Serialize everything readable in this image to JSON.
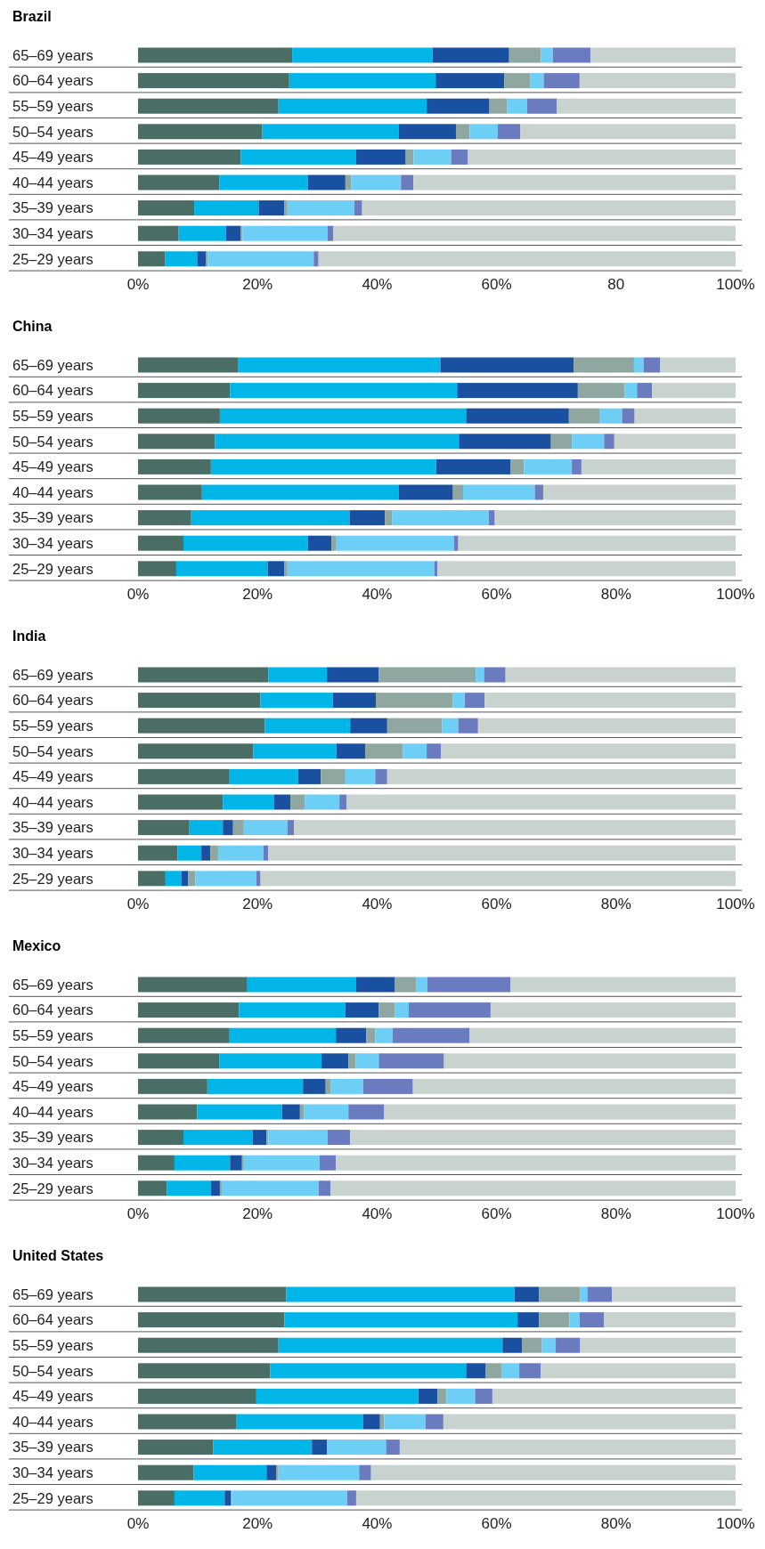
{
  "chart_data": [
    {
      "type": "bar",
      "orientation": "horizontal",
      "stacked": true,
      "title": "Brazil",
      "grid": "y",
      "categories": [
        "65–69 years",
        "60–64 years",
        "55–59 years",
        "50–54 years",
        "45–49 years",
        "40–44 years",
        "35–39 years",
        "30–34 years",
        "25–29 years"
      ],
      "xlim": [
        0,
        100
      ],
      "xticks": [
        {
          "value": 0,
          "label": "0%"
        },
        {
          "value": 20,
          "label": "20%"
        },
        {
          "value": 40,
          "label": "40%"
        },
        {
          "value": 60,
          "label": "60%"
        },
        {
          "value": 80,
          "label": "80"
        },
        {
          "value": 100,
          "label": "100%"
        }
      ],
      "series": [
        {
          "color": "#4a6e66",
          "values": [
            25.8,
            25.3,
            23.5,
            20.8,
            17.2,
            13.6,
            9.4,
            6.8,
            4.5
          ]
        },
        {
          "color": "#00b5e8",
          "values": [
            23.5,
            24.5,
            24.8,
            22.8,
            19.3,
            14.8,
            10.8,
            7.9,
            5.4
          ]
        },
        {
          "color": "#1a50a0",
          "values": [
            12.8,
            11.5,
            10.5,
            9.6,
            8.3,
            6.3,
            4.3,
            2.5,
            1.5
          ]
        },
        {
          "color": "#8fa7a0",
          "values": [
            5.3,
            4.3,
            3.0,
            2.3,
            1.3,
            1.0,
            0.5,
            0.3,
            0.3
          ]
        },
        {
          "color": "#6dcff6",
          "values": [
            2.0,
            2.3,
            3.3,
            4.7,
            6.3,
            8.3,
            11.2,
            14.2,
            17.7
          ]
        },
        {
          "color": "#6a7bbf",
          "values": [
            6.3,
            6.0,
            5.0,
            3.8,
            2.8,
            2.1,
            1.3,
            1.0,
            0.8
          ]
        },
        {
          "color": "#c8d3d0",
          "values": [
            24.3,
            26.1,
            29.9,
            36.0,
            44.8,
            53.9,
            62.5,
            67.3,
            69.8
          ]
        }
      ]
    },
    {
      "type": "bar",
      "orientation": "horizontal",
      "stacked": true,
      "title": "China",
      "grid": "y",
      "categories": [
        "65–69 years",
        "60–64 years",
        "55–59 years",
        "50–54 years",
        "45–49 years",
        "40–44 years",
        "35–39 years",
        "30–34 years",
        "25–29 years"
      ],
      "xlim": [
        0,
        100
      ],
      "xticks": [
        {
          "value": 0,
          "label": "0%"
        },
        {
          "value": 20,
          "label": "20%"
        },
        {
          "value": 40,
          "label": "40%"
        },
        {
          "value": 60,
          "label": "60%"
        },
        {
          "value": 80,
          "label": "80%"
        },
        {
          "value": 100,
          "label": "100%"
        }
      ],
      "series": [
        {
          "color": "#4a6e66",
          "values": [
            16.7,
            15.4,
            13.7,
            12.9,
            12.2,
            10.7,
            8.9,
            7.6,
            6.4
          ]
        },
        {
          "color": "#00b5e8",
          "values": [
            33.9,
            38.0,
            41.2,
            40.8,
            37.7,
            32.9,
            26.5,
            20.8,
            15.3
          ]
        },
        {
          "color": "#1a50a0",
          "values": [
            22.3,
            20.2,
            17.2,
            15.4,
            12.4,
            9.1,
            5.9,
            4.0,
            2.8
          ]
        },
        {
          "color": "#8fa7a0",
          "values": [
            10.1,
            7.8,
            5.1,
            3.5,
            2.3,
            1.7,
            1.2,
            0.8,
            0.5
          ]
        },
        {
          "color": "#6dcff6",
          "values": [
            1.6,
            2.1,
            3.8,
            5.4,
            8.0,
            12.0,
            16.2,
            19.7,
            24.6
          ]
        },
        {
          "color": "#6a7bbf",
          "values": [
            2.8,
            2.5,
            2.1,
            1.7,
            1.6,
            1.4,
            1.0,
            0.7,
            0.5
          ]
        },
        {
          "color": "#c8d3d0",
          "values": [
            12.6,
            14.0,
            16.9,
            20.3,
            25.8,
            32.2,
            40.3,
            46.4,
            49.9
          ]
        }
      ]
    },
    {
      "type": "bar",
      "orientation": "horizontal",
      "stacked": true,
      "title": "India",
      "grid": "y",
      "categories": [
        "65–69 years",
        "60–64 years",
        "55–59 years",
        "50–54 years",
        "45–49 years",
        "40–44 years",
        "35–39 years",
        "30–34 years",
        "25–29 years"
      ],
      "xlim": [
        0,
        100
      ],
      "xticks": [
        {
          "value": 0,
          "label": "0%"
        },
        {
          "value": 20,
          "label": "20%"
        },
        {
          "value": 40,
          "label": "40%"
        },
        {
          "value": 60,
          "label": "60%"
        },
        {
          "value": 80,
          "label": "80%"
        },
        {
          "value": 100,
          "label": "100%"
        }
      ],
      "series": [
        {
          "color": "#4a6e66",
          "values": [
            21.8,
            20.5,
            21.2,
            19.3,
            15.2,
            14.2,
            8.6,
            6.6,
            4.6
          ]
        },
        {
          "color": "#00b5e8",
          "values": [
            9.8,
            12.1,
            14.3,
            13.9,
            11.6,
            8.6,
            5.6,
            4.0,
            2.7
          ]
        },
        {
          "color": "#1a50a0",
          "values": [
            8.7,
            7.2,
            6.2,
            4.8,
            3.8,
            2.7,
            1.7,
            1.5,
            1.1
          ]
        },
        {
          "color": "#8fa7a0",
          "values": [
            16.2,
            12.9,
            9.2,
            6.3,
            4.1,
            2.4,
            1.8,
            1.3,
            1.2
          ]
        },
        {
          "color": "#6dcff6",
          "values": [
            1.4,
            2.0,
            2.7,
            4.0,
            5.0,
            5.8,
            7.3,
            7.6,
            10.2
          ]
        },
        {
          "color": "#6a7bbf",
          "values": [
            3.6,
            3.3,
            3.3,
            2.4,
            2.0,
            1.2,
            1.1,
            0.8,
            0.7
          ]
        },
        {
          "color": "#c8d3d0",
          "values": [
            38.5,
            42.0,
            43.1,
            49.3,
            58.3,
            65.1,
            73.9,
            78.2,
            79.5
          ]
        }
      ]
    },
    {
      "type": "bar",
      "orientation": "horizontal",
      "stacked": true,
      "title": "Mexico",
      "grid": "y",
      "categories": [
        "65–69 years",
        "60–64 years",
        "55–59 years",
        "50–54 years",
        "45–49 years",
        "40–44 years",
        "35–39 years",
        "30–34 years",
        "25–29 years"
      ],
      "xlim": [
        0,
        100
      ],
      "xticks": [
        {
          "value": 0,
          "label": "0%"
        },
        {
          "value": 20,
          "label": "20%"
        },
        {
          "value": 40,
          "label": "40%"
        },
        {
          "value": 60,
          "label": "60%"
        },
        {
          "value": 80,
          "label": "80%"
        },
        {
          "value": 100,
          "label": "100%"
        }
      ],
      "series": [
        {
          "color": "#4a6e66",
          "values": [
            18.3,
            16.9,
            15.2,
            13.6,
            11.6,
            9.9,
            7.6,
            6.1,
            4.8
          ]
        },
        {
          "color": "#00b5e8",
          "values": [
            18.2,
            17.8,
            17.9,
            17.1,
            16.0,
            14.2,
            11.6,
            9.3,
            7.4
          ]
        },
        {
          "color": "#1a50a0",
          "values": [
            6.5,
            5.6,
            5.1,
            4.5,
            3.8,
            3.0,
            2.3,
            2.0,
            1.5
          ]
        },
        {
          "color": "#8fa7a0",
          "values": [
            3.6,
            2.7,
            1.5,
            1.2,
            0.8,
            0.7,
            0.3,
            0.3,
            0.3
          ]
        },
        {
          "color": "#6dcff6",
          "values": [
            1.8,
            2.3,
            2.9,
            3.9,
            5.5,
            7.4,
            9.9,
            12.7,
            16.2
          ]
        },
        {
          "color": "#6a7bbf",
          "values": [
            13.9,
            13.7,
            12.9,
            10.9,
            8.3,
            6.0,
            3.8,
            2.7,
            2.0
          ]
        },
        {
          "color": "#c8d3d0",
          "values": [
            37.7,
            41.0,
            44.5,
            48.8,
            54.0,
            58.8,
            64.5,
            66.9,
            67.8
          ]
        }
      ]
    },
    {
      "type": "bar",
      "orientation": "horizontal",
      "stacked": true,
      "title": "United States",
      "grid": "y",
      "categories": [
        "65–69 years",
        "60–64 years",
        "55–59 years",
        "50–54 years",
        "45–49 years",
        "40–44 years",
        "35–39 years",
        "30–34 years",
        "25–29 years"
      ],
      "xlim": [
        0,
        100
      ],
      "xticks": [
        {
          "value": 0,
          "label": "0%"
        },
        {
          "value": 20,
          "label": "20%"
        },
        {
          "value": 40,
          "label": "40%"
        },
        {
          "value": 60,
          "label": "60%"
        },
        {
          "value": 80,
          "label": "80%"
        },
        {
          "value": 100,
          "label": "100%"
        }
      ],
      "series": [
        {
          "color": "#4a6e66",
          "values": [
            24.8,
            24.5,
            23.5,
            22.1,
            19.8,
            16.5,
            12.6,
            9.3,
            6.1
          ]
        },
        {
          "color": "#00b5e8",
          "values": [
            38.2,
            39.0,
            37.5,
            32.8,
            27.1,
            21.2,
            16.5,
            12.2,
            8.4
          ]
        },
        {
          "color": "#1a50a0",
          "values": [
            4.1,
            3.6,
            3.3,
            3.3,
            3.2,
            2.8,
            2.5,
            1.6,
            1.0
          ]
        },
        {
          "color": "#8fa7a0",
          "values": [
            6.9,
            5.1,
            3.3,
            2.6,
            1.5,
            0.7,
            0.1,
            0.4,
            0.2
          ]
        },
        {
          "color": "#6dcff6",
          "values": [
            1.2,
            1.7,
            2.3,
            3.0,
            4.8,
            6.9,
            9.8,
            13.5,
            19.3
          ]
        },
        {
          "color": "#6a7bbf",
          "values": [
            4.1,
            4.1,
            4.1,
            3.6,
            2.9,
            3.0,
            2.3,
            2.0,
            1.5
          ]
        },
        {
          "color": "#c8d3d0",
          "values": [
            20.7,
            22.0,
            26.0,
            32.6,
            40.7,
            48.9,
            56.2,
            61.0,
            63.5
          ]
        }
      ]
    }
  ]
}
